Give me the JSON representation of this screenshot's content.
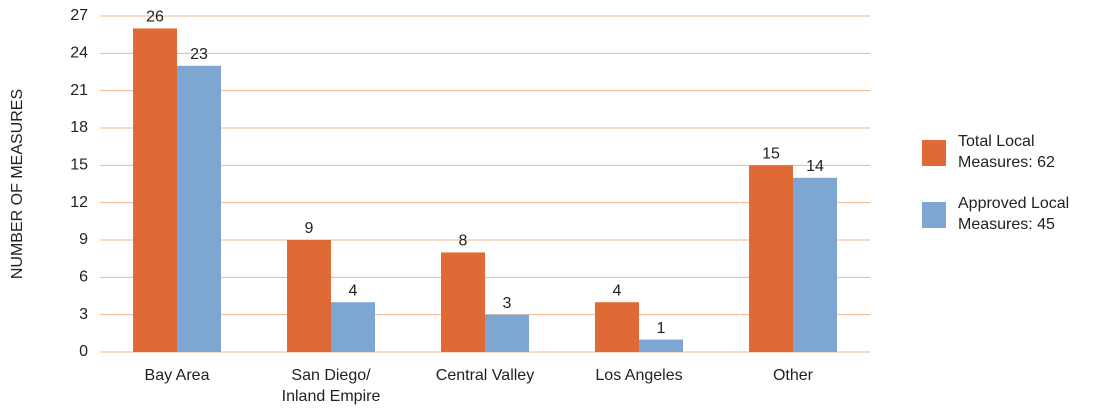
{
  "chart_data": {
    "type": "bar",
    "y_label": "NUMBER OF MEASURES",
    "categories": [
      "Bay Area",
      "San Diego/\nInland Empire",
      "Central Valley",
      "Los Angeles",
      "Other"
    ],
    "series": [
      {
        "name": "Total Local\nMeasures: 62",
        "color": "#e06a35",
        "values": [
          26,
          9,
          8,
          4,
          15
        ]
      },
      {
        "name": "Approved Local\nMeasures: 45",
        "color": "#7ea6d3",
        "values": [
          23,
          4,
          3,
          1,
          14
        ]
      }
    ],
    "ylim": [
      0,
      27
    ],
    "yticks": [
      0,
      3,
      6,
      9,
      12,
      15,
      18,
      21,
      24,
      27
    ],
    "grid": true,
    "grid_color": "#f0b48e",
    "legend": "right"
  }
}
